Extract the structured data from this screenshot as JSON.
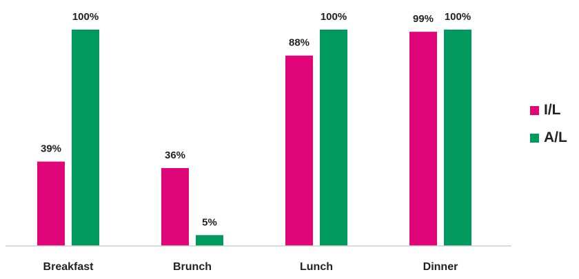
{
  "chart_data": {
    "type": "bar",
    "title": "",
    "xlabel": "",
    "ylabel": "",
    "ylim": [
      0,
      100
    ],
    "grid": false,
    "legend_position": "right",
    "categories": [
      "Breakfast",
      "Brunch",
      "Lunch",
      "Dinner"
    ],
    "series": [
      {
        "name": "I/L",
        "color": "#e0067a",
        "values": [
          39,
          36,
          88,
          99
        ],
        "labels": [
          "39%",
          "36%",
          "88%",
          "99%"
        ]
      },
      {
        "name": "A/L",
        "color": "#009a5e",
        "values": [
          100,
          5,
          100,
          100
        ],
        "labels": [
          "100%",
          "5%",
          "100%",
          "100%"
        ]
      }
    ]
  }
}
